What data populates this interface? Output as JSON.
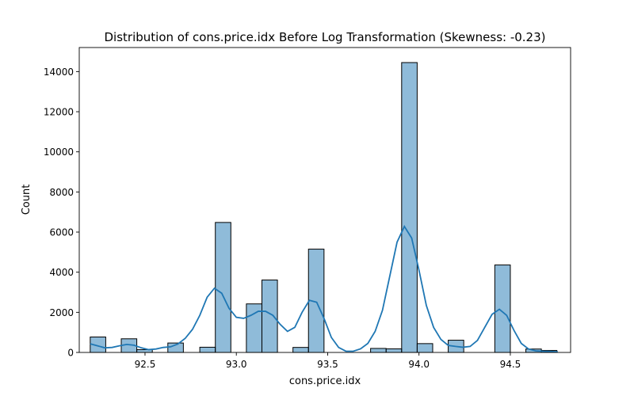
{
  "chart_data": {
    "type": "bar",
    "title": "Distribution of cons.price.idx Before Log Transformation (Skewness: -0.23)",
    "xlabel": "cons.price.idx",
    "ylabel": "Count",
    "xlim": [
      92.14,
      94.83
    ],
    "ylim": [
      0,
      15200
    ],
    "xticks": [
      92.5,
      93.0,
      93.5,
      94.0,
      94.5
    ],
    "xtick_labels": [
      "92.5",
      "93.0",
      "93.5",
      "94.0",
      "94.5"
    ],
    "yticks": [
      0,
      2000,
      4000,
      6000,
      8000,
      10000,
      12000,
      14000
    ],
    "ytick_labels": [
      "0",
      "2000",
      "4000",
      "6000",
      "8000",
      "10000",
      "12000",
      "14000"
    ],
    "grid": false,
    "bar_color": "#1f77b4",
    "bar_alpha": 0.5,
    "kde_color": "#1f77b4",
    "bins": [
      {
        "x0": 92.2,
        "x1": 92.285,
        "count": 770
      },
      {
        "x0": 92.37,
        "x1": 92.455,
        "count": 680
      },
      {
        "x0": 92.455,
        "x1": 92.54,
        "count": 140
      },
      {
        "x0": 92.625,
        "x1": 92.71,
        "count": 470
      },
      {
        "x0": 92.8,
        "x1": 92.885,
        "count": 260
      },
      {
        "x0": 92.885,
        "x1": 92.97,
        "count": 6480
      },
      {
        "x0": 93.055,
        "x1": 93.14,
        "count": 2420
      },
      {
        "x0": 93.14,
        "x1": 93.225,
        "count": 3610
      },
      {
        "x0": 93.31,
        "x1": 93.395,
        "count": 250
      },
      {
        "x0": 93.395,
        "x1": 93.48,
        "count": 5150
      },
      {
        "x0": 93.735,
        "x1": 93.82,
        "count": 200
      },
      {
        "x0": 93.82,
        "x1": 93.905,
        "count": 180
      },
      {
        "x0": 93.905,
        "x1": 93.99,
        "count": 14450
      },
      {
        "x0": 93.99,
        "x1": 94.075,
        "count": 440
      },
      {
        "x0": 94.16,
        "x1": 94.245,
        "count": 610
      },
      {
        "x0": 94.415,
        "x1": 94.5,
        "count": 4360
      },
      {
        "x0": 94.585,
        "x1": 94.67,
        "count": 170
      },
      {
        "x0": 94.67,
        "x1": 94.755,
        "count": 100
      }
    ],
    "kde": {
      "x": [
        92.2,
        92.24,
        92.28,
        92.32,
        92.36,
        92.4,
        92.44,
        92.48,
        92.52,
        92.56,
        92.6,
        92.64,
        92.68,
        92.72,
        92.76,
        92.8,
        92.84,
        92.88,
        92.92,
        92.96,
        93.0,
        93.04,
        93.08,
        93.12,
        93.16,
        93.2,
        93.24,
        93.28,
        93.32,
        93.36,
        93.4,
        93.44,
        93.48,
        93.52,
        93.56,
        93.6,
        93.64,
        93.68,
        93.72,
        93.76,
        93.8,
        93.84,
        93.88,
        93.92,
        93.96,
        94.0,
        94.04,
        94.08,
        94.12,
        94.16,
        94.2,
        94.24,
        94.28,
        94.32,
        94.36,
        94.4,
        94.44,
        94.48,
        94.52,
        94.56,
        94.6,
        94.64,
        94.68,
        94.72,
        94.76
      ],
      "y": [
        430,
        330,
        230,
        250,
        330,
        400,
        360,
        230,
        140,
        170,
        250,
        280,
        420,
        700,
        1150,
        1850,
        2750,
        3200,
        2950,
        2200,
        1750,
        1700,
        1850,
        2050,
        2050,
        1850,
        1400,
        1050,
        1250,
        2000,
        2600,
        2500,
        1700,
        750,
        250,
        60,
        60,
        180,
        450,
        1050,
        2100,
        3800,
        5500,
        6280,
        5700,
        4100,
        2350,
        1250,
        650,
        350,
        300,
        260,
        300,
        600,
        1250,
        1900,
        2150,
        1850,
        1100,
        450,
        170,
        80,
        60,
        50,
        30
      ]
    }
  }
}
